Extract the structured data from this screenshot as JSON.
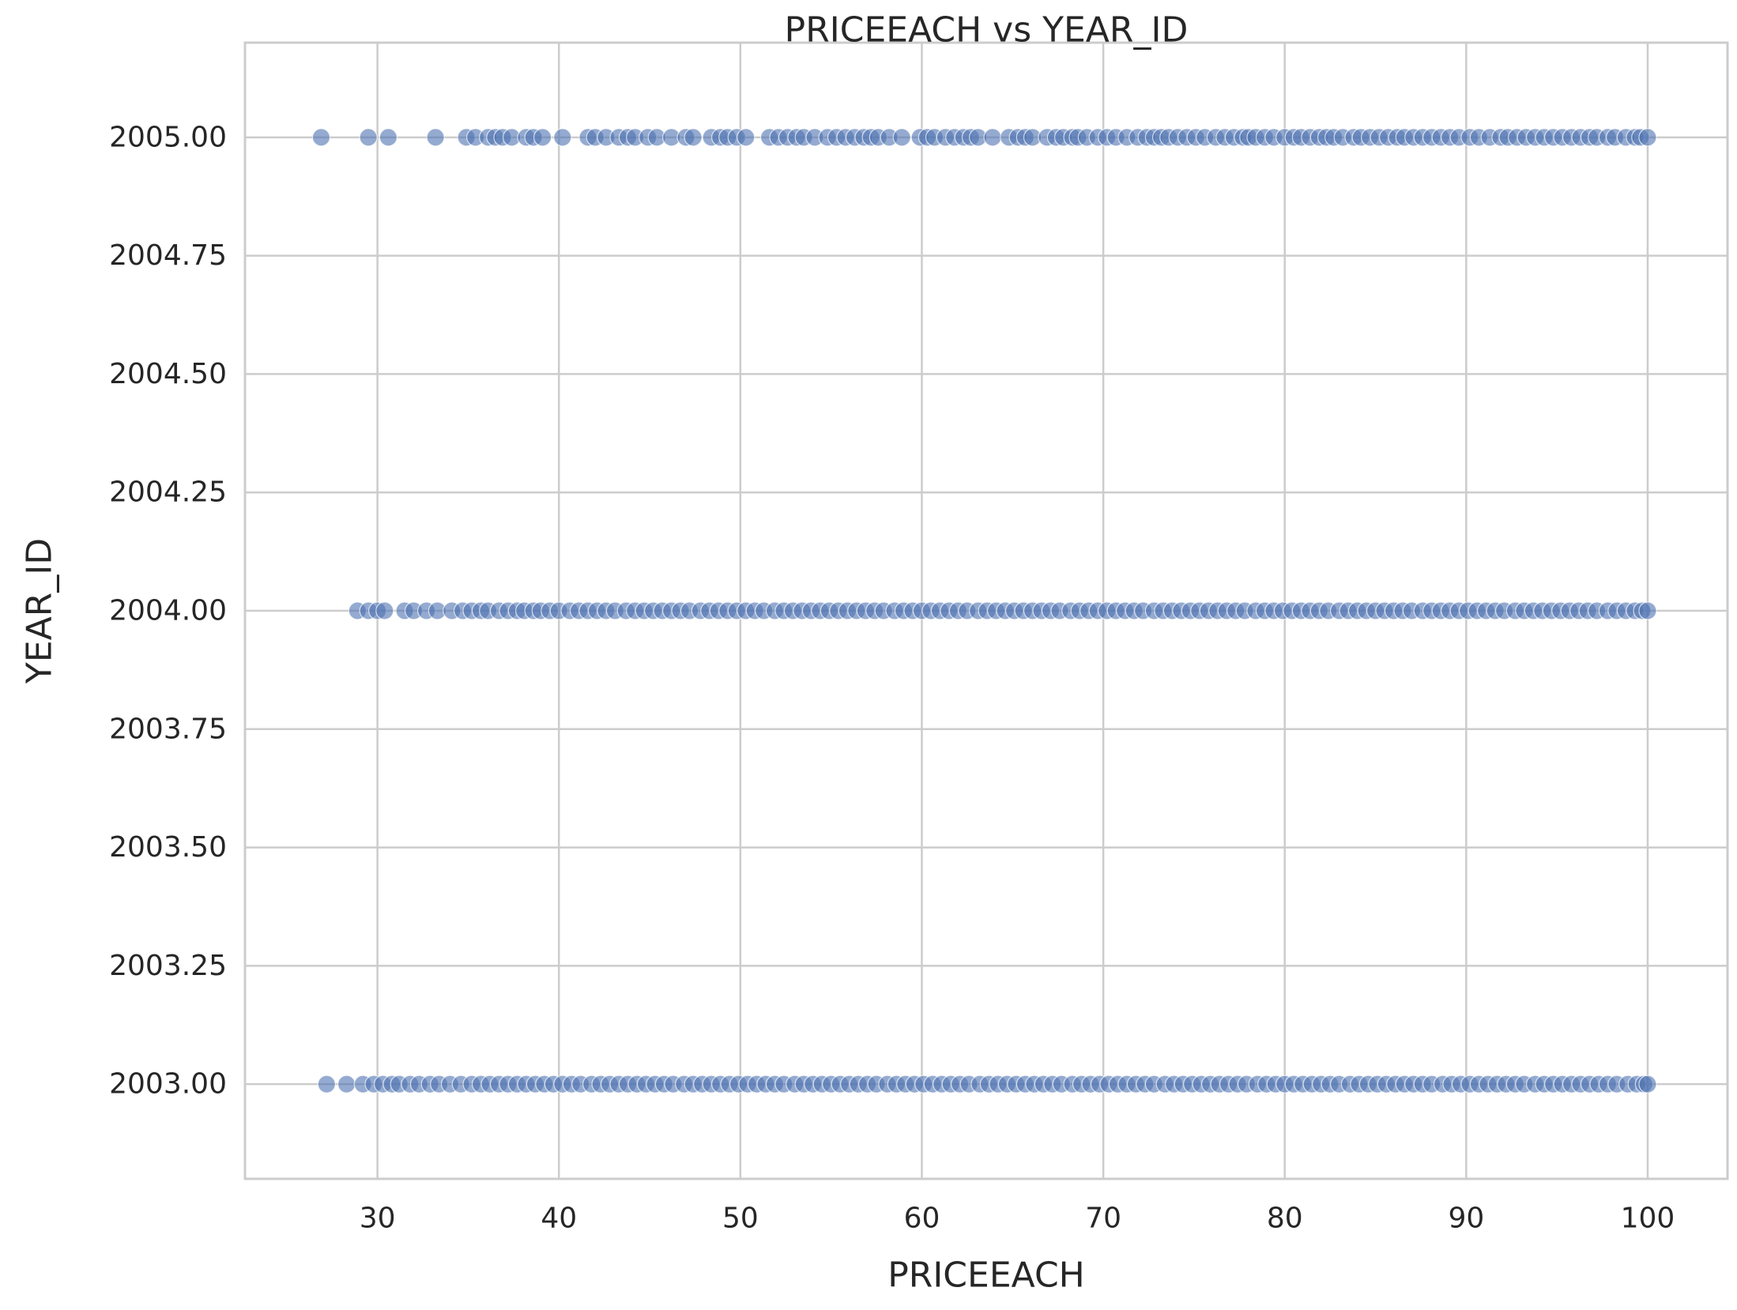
{
  "chart_data": {
    "type": "scatter",
    "title": "PRICEEACH vs YEAR_ID",
    "xlabel": "PRICEEACH",
    "ylabel": "YEAR_ID",
    "xlim": [
      22.7,
      104.4
    ],
    "ylim": [
      2002.8,
      2005.2
    ],
    "xticks": [
      30,
      40,
      50,
      60,
      70,
      80,
      90,
      100
    ],
    "xtick_labels": [
      "30",
      "40",
      "50",
      "60",
      "70",
      "80",
      "90",
      "100"
    ],
    "yticks": [
      2003.0,
      2003.25,
      2003.5,
      2003.75,
      2004.0,
      2004.25,
      2004.5,
      2004.75,
      2005.0
    ],
    "ytick_labels": [
      "2003.00",
      "2003.25",
      "2003.50",
      "2003.75",
      "2004.00",
      "2004.25",
      "2004.50",
      "2004.75",
      "2005.00"
    ],
    "grid": true,
    "point_color": "#4c72b0",
    "point_opacity": 0.6,
    "series": [
      {
        "y": 2005,
        "x": [
          26.9,
          29.5,
          30.6,
          33.2,
          34.9,
          35.4,
          36.1,
          36.5,
          36.9,
          37.4,
          38.2,
          38.6,
          39.1,
          40.2,
          41.6,
          42.0,
          42.6,
          43.3,
          43.8,
          44.2,
          44.9,
          45.4,
          46.2,
          47.0,
          47.4,
          48.4,
          48.9,
          49.3,
          49.8,
          50.3,
          51.6,
          52.1,
          52.6,
          53.1,
          53.5,
          54.1,
          54.8,
          55.3,
          55.8,
          56.3,
          56.8,
          57.2,
          57.6,
          58.2,
          58.9,
          59.9,
          60.3,
          60.7,
          61.3,
          61.8,
          62.3,
          62.7,
          63.1,
          63.9,
          64.8,
          65.3,
          65.7,
          66.1,
          66.9,
          67.4,
          67.8,
          68.3,
          68.6,
          69.1,
          69.7,
          70.2,
          70.7,
          71.3,
          71.9,
          72.4,
          72.8,
          73.2,
          73.6,
          74.1,
          74.6,
          75.1,
          75.6,
          76.2,
          76.7,
          77.2,
          77.7,
          78.0,
          78.4,
          78.9,
          79.4,
          80.0,
          80.5,
          80.9,
          81.4,
          81.9,
          82.3,
          82.7,
          83.2,
          83.8,
          84.2,
          84.7,
          85.2,
          85.7,
          86.2,
          86.6,
          87.1,
          87.6,
          88.1,
          88.6,
          89.1,
          89.6,
          90.2,
          90.7,
          91.3,
          91.9,
          92.3,
          92.8,
          93.3,
          93.8,
          94.3,
          94.8,
          95.3,
          95.8,
          96.3,
          96.8,
          97.2,
          97.8,
          98.2,
          98.8,
          99.3,
          99.6,
          100.0
        ]
      },
      {
        "y": 2004,
        "x": [
          28.9,
          29.5,
          30.0,
          30.4,
          31.5,
          32.0,
          32.7,
          33.3,
          34.1,
          34.7,
          35.2,
          35.7,
          36.1,
          36.7,
          37.2,
          37.7,
          38.1,
          38.6,
          39.0,
          39.5,
          40.0,
          40.6,
          41.1,
          41.6,
          42.1,
          42.6,
          43.1,
          43.7,
          44.2,
          44.7,
          45.2,
          45.7,
          46.2,
          46.7,
          47.2,
          47.8,
          48.3,
          48.8,
          49.3,
          49.8,
          50.3,
          50.8,
          51.3,
          51.9,
          52.4,
          52.9,
          53.4,
          53.9,
          54.4,
          54.9,
          55.4,
          55.9,
          56.4,
          56.9,
          57.4,
          57.9,
          58.5,
          59.0,
          59.5,
          60.0,
          60.5,
          61.0,
          61.5,
          62.0,
          62.5,
          63.1,
          63.6,
          64.1,
          64.6,
          65.1,
          65.6,
          66.1,
          66.6,
          67.1,
          67.6,
          68.2,
          68.7,
          69.2,
          69.7,
          70.2,
          70.7,
          71.2,
          71.7,
          72.2,
          72.8,
          73.3,
          73.8,
          74.3,
          74.8,
          75.3,
          75.8,
          76.3,
          76.8,
          77.3,
          77.8,
          78.4,
          78.9,
          79.4,
          79.9,
          80.4,
          80.9,
          81.4,
          81.9,
          82.4,
          83.0,
          83.5,
          84.0,
          84.5,
          85.0,
          85.5,
          86.0,
          86.5,
          87.0,
          87.6,
          88.1,
          88.6,
          89.1,
          89.6,
          90.1,
          90.6,
          91.1,
          91.6,
          92.1,
          92.7,
          93.2,
          93.7,
          94.2,
          94.7,
          95.2,
          95.7,
          96.2,
          96.7,
          97.2,
          97.8,
          98.3,
          98.8,
          99.3,
          99.7,
          100.0
        ]
      },
      {
        "y": 2003,
        "x": [
          27.2,
          28.3,
          29.2,
          29.8,
          30.3,
          30.8,
          31.2,
          31.8,
          32.3,
          32.9,
          33.4,
          34.0,
          34.6,
          35.2,
          35.7,
          36.2,
          36.7,
          37.2,
          37.7,
          38.2,
          38.7,
          39.2,
          39.7,
          40.2,
          40.7,
          41.2,
          41.8,
          42.3,
          42.8,
          43.3,
          43.8,
          44.3,
          44.8,
          45.3,
          45.8,
          46.3,
          46.9,
          47.4,
          47.9,
          48.4,
          48.9,
          49.4,
          49.9,
          50.4,
          50.9,
          51.4,
          51.9,
          52.4,
          53.0,
          53.5,
          54.0,
          54.5,
          55.0,
          55.5,
          56.0,
          56.5,
          57.0,
          57.5,
          58.1,
          58.6,
          59.1,
          59.6,
          60.1,
          60.6,
          61.1,
          61.6,
          62.1,
          62.6,
          63.2,
          63.7,
          64.2,
          64.7,
          65.2,
          65.7,
          66.2,
          66.7,
          67.2,
          67.7,
          68.3,
          68.8,
          69.3,
          69.8,
          70.3,
          70.8,
          71.3,
          71.8,
          72.3,
          72.8,
          73.4,
          73.9,
          74.4,
          74.9,
          75.4,
          75.9,
          76.4,
          76.9,
          77.4,
          77.9,
          78.5,
          79.0,
          79.5,
          80.0,
          80.5,
          81.0,
          81.5,
          82.0,
          82.5,
          83.0,
          83.6,
          84.1,
          84.6,
          85.1,
          85.6,
          86.1,
          86.6,
          87.1,
          87.6,
          88.1,
          88.7,
          89.2,
          89.7,
          90.2,
          90.7,
          91.2,
          91.7,
          92.2,
          92.7,
          93.2,
          93.8,
          94.3,
          94.8,
          95.3,
          95.8,
          96.3,
          96.8,
          97.3,
          97.8,
          98.3,
          98.9,
          99.4,
          99.8,
          100.0
        ]
      }
    ]
  }
}
